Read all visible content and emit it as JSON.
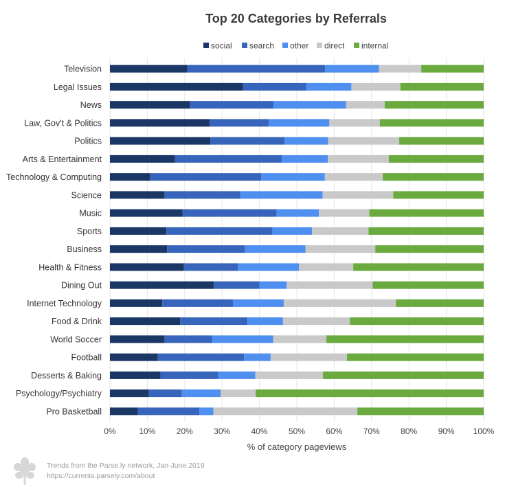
{
  "chart_data": {
    "type": "bar",
    "orientation": "horizontal",
    "stacked": true,
    "title": "Top 20 Categories by Referrals",
    "xlabel": "% of category pageviews",
    "ylabel": "",
    "xlim": [
      0,
      100
    ],
    "x_ticks": [
      "0%",
      "10%",
      "20%",
      "30%",
      "40%",
      "50%",
      "60%",
      "70%",
      "80%",
      "90%",
      "100%"
    ],
    "grid": true,
    "legend_position": "top-center",
    "categories": [
      "Television",
      "Legal Issues",
      "News",
      "Law, Gov't & Politics",
      "Politics",
      "Arts & Entertainment",
      "Technology & Computing",
      "Science",
      "Music",
      "Sports",
      "Business",
      "Health & Fitness",
      "Dining Out",
      "Internet Technology",
      "Food & Drink",
      "World Soccer",
      "Football",
      "Desserts & Baking",
      "Psychology/Psychiatry",
      "Pro Basketball"
    ],
    "series": [
      {
        "name": "social",
        "color": "#1b3766",
        "values": [
          20.7,
          35.6,
          21.4,
          26.7,
          26.9,
          17.4,
          10.8,
          14.6,
          19.4,
          15.1,
          15.3,
          19.8,
          27.8,
          14.0,
          18.8,
          14.6,
          12.8,
          13.5,
          10.4,
          7.5
        ]
      },
      {
        "name": "search",
        "color": "#3765bb",
        "values": [
          36.9,
          17.0,
          22.4,
          15.8,
          19.8,
          28.6,
          29.7,
          20.3,
          25.2,
          28.4,
          20.8,
          14.4,
          12.2,
          18.9,
          18.0,
          12.7,
          23.1,
          15.5,
          8.8,
          16.4
        ]
      },
      {
        "name": "other",
        "color": "#4f8ff0",
        "values": [
          14.4,
          12.0,
          19.4,
          16.2,
          11.7,
          12.3,
          17.0,
          22.0,
          11.3,
          10.6,
          16.2,
          16.4,
          7.3,
          13.6,
          9.5,
          16.4,
          7.1,
          9.9,
          10.4,
          3.8
        ]
      },
      {
        "name": "direct",
        "color": "#c9c9c9",
        "values": [
          11.3,
          13.1,
          10.3,
          13.5,
          19.0,
          16.3,
          15.5,
          18.9,
          13.5,
          15.1,
          18.7,
          14.5,
          23.0,
          30.0,
          17.9,
          14.2,
          20.4,
          18.1,
          9.4,
          38.5
        ]
      },
      {
        "name": "internal",
        "color": "#6aaa3e",
        "values": [
          16.7,
          22.3,
          26.5,
          27.8,
          22.6,
          25.4,
          27.0,
          24.2,
          30.6,
          30.8,
          29.0,
          34.9,
          29.7,
          23.5,
          35.8,
          42.1,
          36.6,
          43.0,
          61.0,
          33.8
        ]
      }
    ]
  },
  "footer": {
    "line1": "Trends from the Parse.ly network, Jan-June 2019",
    "line2": "https://currents.parsely.com/about"
  }
}
